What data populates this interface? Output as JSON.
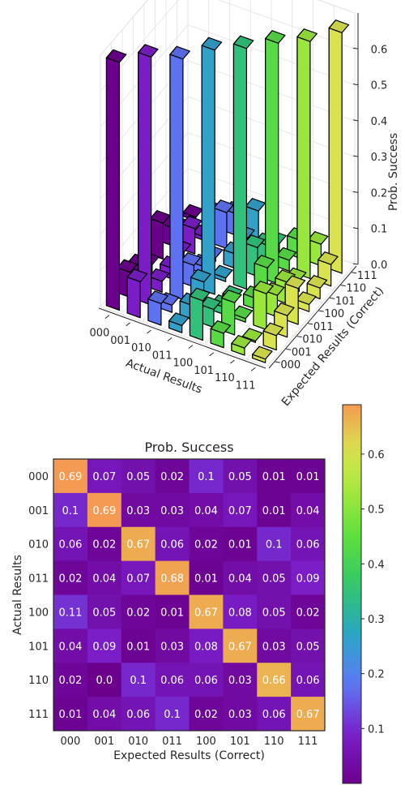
{
  "chart_data": [
    {
      "type": "bar3d",
      "title": "",
      "xlabel": "Actual Results",
      "ylabel": "Expected Results (Correct)",
      "zlabel": "Prob. Success",
      "x_ticks": [
        "000",
        "001",
        "010",
        "011",
        "100",
        "101",
        "110",
        "111"
      ],
      "y_ticks": [
        "000",
        "001",
        "010",
        "011",
        "100",
        "101",
        "110",
        "111"
      ],
      "z_ticks": [
        "0.0",
        "0.1",
        "0.2",
        "0.3",
        "0.4",
        "0.5",
        "0.6"
      ],
      "zlim": [
        0,
        0.7
      ],
      "matrix_source": "same values as heatmap",
      "colormap": "rainbow by actual result index"
    },
    {
      "type": "heatmap",
      "title": "Prob. Success",
      "xlabel": "Expected Results (Correct)",
      "ylabel": "Actual Results",
      "x_ticks": [
        "000",
        "001",
        "010",
        "011",
        "100",
        "101",
        "110",
        "111"
      ],
      "y_ticks": [
        "000",
        "001",
        "010",
        "011",
        "100",
        "101",
        "110",
        "111"
      ],
      "values": [
        [
          0.69,
          0.07,
          0.05,
          0.02,
          0.1,
          0.05,
          0.01,
          0.01
        ],
        [
          0.1,
          0.69,
          0.03,
          0.03,
          0.04,
          0.07,
          0.01,
          0.04
        ],
        [
          0.06,
          0.02,
          0.67,
          0.06,
          0.02,
          0.01,
          0.1,
          0.06
        ],
        [
          0.02,
          0.04,
          0.07,
          0.68,
          0.01,
          0.04,
          0.05,
          0.09
        ],
        [
          0.11,
          0.05,
          0.02,
          0.01,
          0.67,
          0.08,
          0.05,
          0.02
        ],
        [
          0.04,
          0.09,
          0.01,
          0.03,
          0.08,
          0.67,
          0.03,
          0.05
        ],
        [
          0.02,
          0.0,
          0.1,
          0.06,
          0.06,
          0.03,
          0.66,
          0.06
        ],
        [
          0.01,
          0.04,
          0.06,
          0.1,
          0.02,
          0.03,
          0.06,
          0.67
        ]
      ],
      "value_labels": [
        [
          "0.69",
          "0.07",
          "0.05",
          "0.02",
          "0.1",
          "0.05",
          "0.01",
          "0.01"
        ],
        [
          "0.1",
          "0.69",
          "0.03",
          "0.03",
          "0.04",
          "0.07",
          "0.01",
          "0.04"
        ],
        [
          "0.06",
          "0.02",
          "0.67",
          "0.06",
          "0.02",
          "0.01",
          "0.1",
          "0.06"
        ],
        [
          "0.02",
          "0.04",
          "0.07",
          "0.68",
          "0.01",
          "0.04",
          "0.05",
          "0.09"
        ],
        [
          "0.11",
          "0.05",
          "0.02",
          "0.01",
          "0.67",
          "0.08",
          "0.05",
          "0.02"
        ],
        [
          "0.04",
          "0.09",
          "0.01",
          "0.03",
          "0.08",
          "0.67",
          "0.03",
          "0.05"
        ],
        [
          "0.02",
          "0.0",
          "0.1",
          "0.06",
          "0.06",
          "0.03",
          "0.66",
          "0.06"
        ],
        [
          "0.01",
          "0.04",
          "0.06",
          "0.1",
          "0.02",
          "0.03",
          "0.06",
          "0.67"
        ]
      ],
      "colorbar_ticks": [
        "0.1",
        "0.2",
        "0.3",
        "0.4",
        "0.5",
        "0.6"
      ],
      "vmin": 0.0,
      "vmax": 0.69,
      "colormap": "plasma-like"
    }
  ]
}
